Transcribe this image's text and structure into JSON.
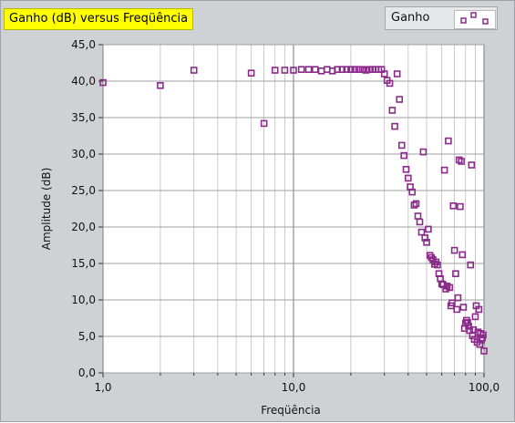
{
  "window": {
    "title_label": "Ganho (dB) versus Freqüência",
    "legend_label": "Ganho"
  },
  "colors": {
    "frame": "#cfd2d5",
    "plot_bg": "#ffffff",
    "grid": "#a9a9a9",
    "marker": "#8b2a8b",
    "title_bg": "#ffff00"
  },
  "chart_data": {
    "type": "scatter",
    "title": "Ganho (dB) versus Freqüência",
    "xlabel": "Freqüência",
    "ylabel": "Amplitude (dB)",
    "x_scale": "log",
    "xlim": [
      1,
      100
    ],
    "ylim": [
      0,
      45
    ],
    "x_ticks": [
      "1,0",
      "10,0",
      "100,0"
    ],
    "y_ticks": [
      "0,0",
      "5,0",
      "10,0",
      "15,0",
      "20,0",
      "25,0",
      "30,0",
      "35,0",
      "40,0",
      "45,0"
    ],
    "grid": true,
    "legend_position": "top-right",
    "series": [
      {
        "name": "Ganho",
        "marker": "hollow-square",
        "points": [
          [
            1.0,
            39.8
          ],
          [
            2.0,
            39.4
          ],
          [
            3.0,
            41.5
          ],
          [
            6.0,
            41.1
          ],
          [
            7.0,
            34.2
          ],
          [
            8.0,
            41.5
          ],
          [
            9.0,
            41.5
          ],
          [
            10.0,
            41.5
          ],
          [
            11.0,
            41.6
          ],
          [
            12.0,
            41.6
          ],
          [
            13.0,
            41.6
          ],
          [
            14.0,
            41.4
          ],
          [
            15.0,
            41.6
          ],
          [
            16.0,
            41.4
          ],
          [
            17.0,
            41.6
          ],
          [
            18.0,
            41.6
          ],
          [
            19.0,
            41.6
          ],
          [
            20.0,
            41.6
          ],
          [
            21.0,
            41.6
          ],
          [
            22.0,
            41.6
          ],
          [
            23.0,
            41.6
          ],
          [
            24.0,
            41.5
          ],
          [
            25.0,
            41.6
          ],
          [
            26.0,
            41.6
          ],
          [
            27.0,
            41.6
          ],
          [
            28.0,
            41.6
          ],
          [
            29.0,
            41.6
          ],
          [
            30.0,
            41.0
          ],
          [
            31.0,
            40.1
          ],
          [
            32.0,
            39.7
          ],
          [
            33.0,
            36.0
          ],
          [
            34.0,
            33.8
          ],
          [
            35.0,
            41.0
          ],
          [
            36.0,
            37.5
          ],
          [
            37.0,
            31.2
          ],
          [
            38.0,
            29.8
          ],
          [
            39.0,
            27.9
          ],
          [
            40.0,
            26.7
          ],
          [
            41.0,
            25.5
          ],
          [
            42.0,
            24.8
          ],
          [
            43.0,
            23.0
          ],
          [
            44.0,
            23.2
          ],
          [
            45.0,
            21.5
          ],
          [
            46.0,
            20.7
          ],
          [
            47.0,
            19.3
          ],
          [
            48.0,
            30.3
          ],
          [
            49.0,
            18.5
          ],
          [
            50.0,
            17.9
          ],
          [
            51.0,
            19.7
          ],
          [
            52.0,
            16.1
          ],
          [
            53.0,
            15.8
          ],
          [
            54.0,
            15.5
          ],
          [
            55.0,
            14.9
          ],
          [
            56.0,
            15.2
          ],
          [
            57.0,
            14.8
          ],
          [
            58.0,
            13.6
          ],
          [
            59.0,
            12.9
          ],
          [
            60.0,
            12.2
          ],
          [
            61.0,
            12.1
          ],
          [
            62.0,
            27.8
          ],
          [
            63.0,
            11.5
          ],
          [
            64.0,
            11.9
          ],
          [
            65.0,
            31.8
          ],
          [
            66.0,
            11.7
          ],
          [
            67.0,
            9.2
          ],
          [
            68.0,
            9.6
          ],
          [
            69.0,
            22.9
          ],
          [
            70.0,
            16.8
          ],
          [
            71.0,
            13.6
          ],
          [
            72.0,
            8.7
          ],
          [
            73.0,
            10.3
          ],
          [
            74.0,
            29.2
          ],
          [
            75.0,
            22.8
          ],
          [
            76.0,
            29.0
          ],
          [
            77.0,
            16.2
          ],
          [
            78.0,
            9.0
          ],
          [
            79.0,
            6.1
          ],
          [
            80.0,
            6.8
          ],
          [
            81.0,
            7.2
          ],
          [
            82.0,
            6.9
          ],
          [
            83.0,
            6.4
          ],
          [
            84.0,
            5.8
          ],
          [
            85.0,
            14.8
          ],
          [
            86.0,
            28.5
          ],
          [
            87.0,
            5.1
          ],
          [
            88.0,
            5.9
          ],
          [
            89.0,
            4.6
          ],
          [
            90.0,
            7.7
          ],
          [
            91.0,
            9.2
          ],
          [
            92.0,
            4.2
          ],
          [
            93.0,
            5.6
          ],
          [
            94.0,
            8.7
          ],
          [
            95.0,
            3.9
          ],
          [
            96.0,
            5.4
          ],
          [
            97.0,
            4.5
          ],
          [
            98.0,
            4.8
          ],
          [
            99.0,
            5.2
          ],
          [
            100.0,
            3.0
          ]
        ]
      }
    ]
  }
}
